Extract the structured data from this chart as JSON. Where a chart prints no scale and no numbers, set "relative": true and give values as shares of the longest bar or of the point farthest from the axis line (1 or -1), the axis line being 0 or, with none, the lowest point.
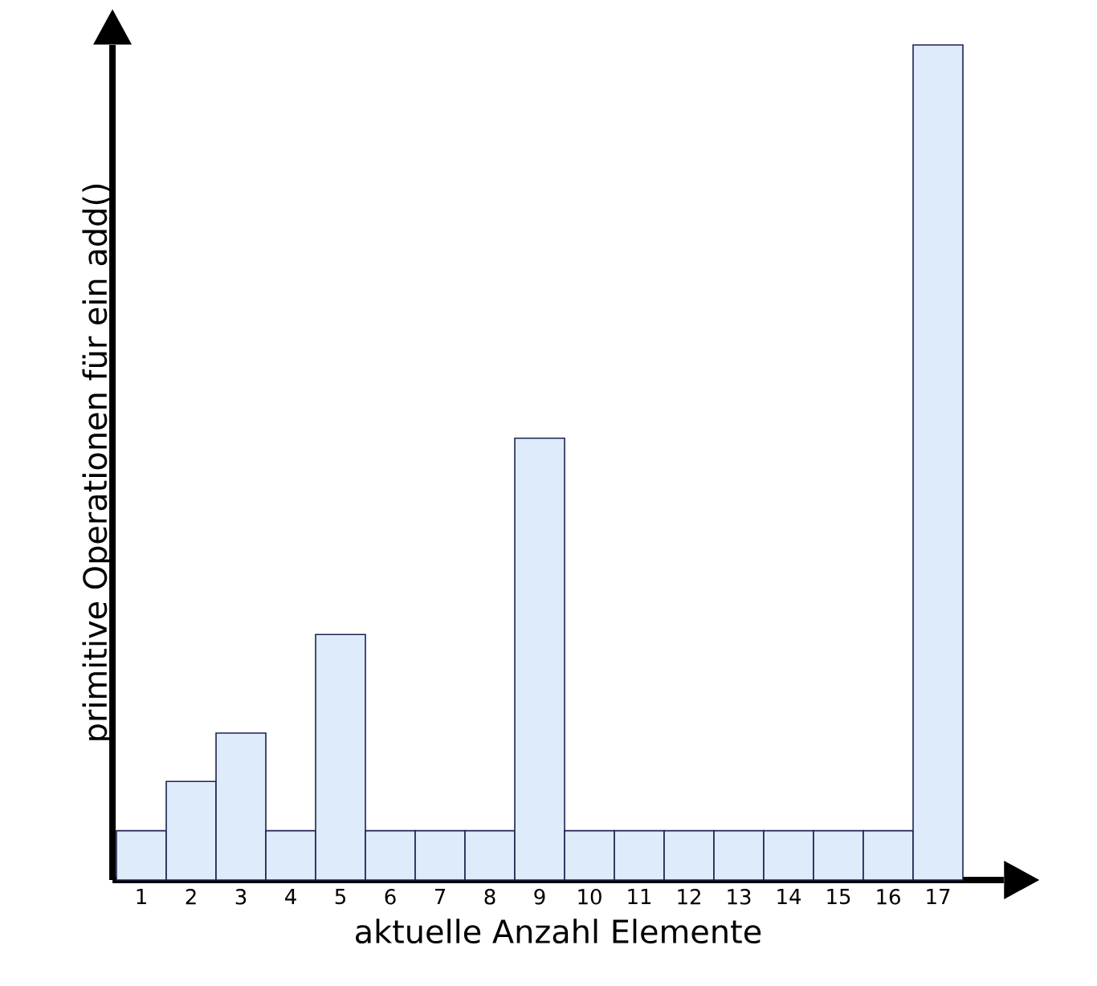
{
  "chart_data": {
    "type": "bar",
    "xlabel": "aktuelle Anzahl Elemente",
    "ylabel": "primitive Operationen für ein add()",
    "categories": [
      "1",
      "2",
      "3",
      "4",
      "5",
      "6",
      "7",
      "8",
      "9",
      "10",
      "11",
      "12",
      "13",
      "14",
      "15",
      "16",
      "17"
    ],
    "values": [
      0.059,
      0.118,
      0.176,
      0.059,
      0.294,
      0.059,
      0.059,
      0.059,
      0.529,
      0.059,
      0.059,
      0.059,
      0.059,
      0.059,
      0.059,
      0.059,
      1
    ],
    "relative": true,
    "color": "#deebfa"
  }
}
